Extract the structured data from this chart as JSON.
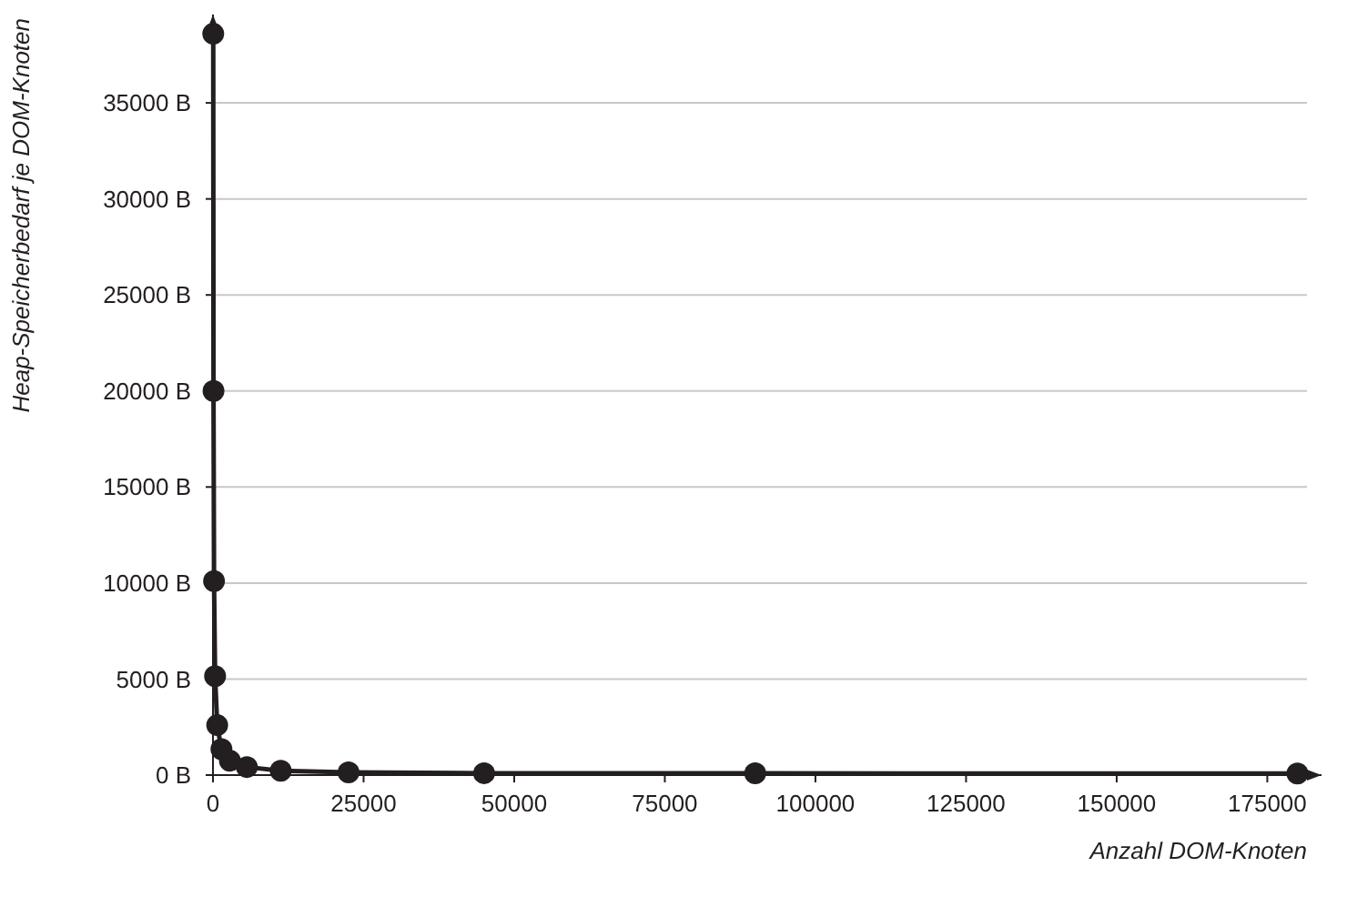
{
  "chart_data": {
    "type": "line",
    "xlabel": "Anzahl DOM-Knoten",
    "ylabel": "Heap-Speicherbedarf je DOM-Knoten",
    "x": [
      44,
      88,
      176,
      352,
      703,
      1406,
      2813,
      5625,
      11250,
      22500,
      45000,
      90000,
      180000
    ],
    "series": [
      {
        "color": "#231f20",
        "values": [
          38600,
          20000,
          10100,
          5150,
          2600,
          1350,
          750,
          420,
          220,
          140,
          100,
          90,
          80
        ]
      }
    ],
    "xlim": [
      0,
      184000
    ],
    "xticks": [
      0,
      25000,
      50000,
      75000,
      100000,
      125000,
      150000,
      175000
    ],
    "ylim": [
      0,
      39600
    ],
    "yticks": [
      {
        "value": 0,
        "label": "0 B"
      },
      {
        "value": 5000,
        "label": "5000 B"
      },
      {
        "value": 10000,
        "label": "10000 B"
      },
      {
        "value": 15000,
        "label": "15000 B"
      },
      {
        "value": 20000,
        "label": "20000 B"
      },
      {
        "value": 25000,
        "label": "25000 B"
      },
      {
        "value": 30000,
        "label": "30000 B"
      },
      {
        "value": 35000,
        "label": "35000 B"
      }
    ],
    "grid": "y",
    "marker": "circle",
    "line_style": "solid"
  }
}
